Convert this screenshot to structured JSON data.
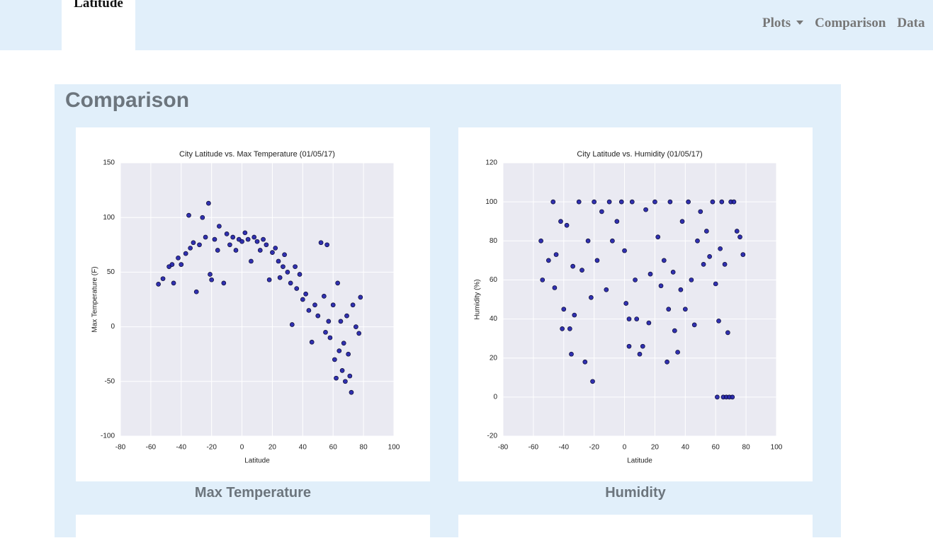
{
  "nav": {
    "brand": "Latitude",
    "items": [
      "Plots",
      "Comparison",
      "Data"
    ]
  },
  "heading": "Comparison",
  "captions": [
    "Max Temperature",
    "Humidity"
  ],
  "chart_data": [
    {
      "type": "scatter",
      "title": "City Latitude vs. Max Temperature (01/05/17)",
      "xlabel": "Latitude",
      "ylabel": "Max Temperature (F)",
      "xlim": [
        -80,
        100
      ],
      "xticks": [
        -80,
        -60,
        -40,
        -20,
        0,
        20,
        40,
        60,
        80,
        100
      ],
      "ylim": [
        -100,
        150
      ],
      "yticks": [
        -100,
        -50,
        0,
        50,
        100,
        150
      ],
      "grid": true,
      "color": "#1c1ca8",
      "x": [
        -55,
        -52,
        -48,
        -46,
        -45,
        -42,
        -40,
        -37,
        -35,
        -34,
        -32,
        -30,
        -28,
        -26,
        -24,
        -22,
        -21,
        -20,
        -18,
        -16,
        -15,
        -12,
        -10,
        -8,
        -6,
        -4,
        -2,
        0,
        2,
        4,
        6,
        8,
        10,
        12,
        14,
        16,
        18,
        20,
        22,
        24,
        25,
        27,
        28,
        30,
        32,
        33,
        35,
        36,
        38,
        40,
        42,
        44,
        46,
        48,
        50,
        52,
        54,
        55,
        56,
        57,
        58,
        60,
        61,
        62,
        63,
        64,
        65,
        66,
        67,
        68,
        69,
        70,
        71,
        72,
        73,
        75,
        77,
        78
      ],
      "values": [
        39,
        44,
        55,
        57,
        40,
        63,
        57,
        67,
        102,
        72,
        77,
        32,
        75,
        100,
        82,
        113,
        48,
        43,
        80,
        70,
        92,
        40,
        85,
        75,
        82,
        70,
        80,
        78,
        86,
        80,
        60,
        82,
        78,
        70,
        80,
        75,
        43,
        68,
        72,
        60,
        45,
        55,
        66,
        50,
        40,
        2,
        55,
        35,
        48,
        25,
        30,
        15,
        -14,
        20,
        10,
        77,
        28,
        -5,
        75,
        5,
        -10,
        20,
        -30,
        -47,
        40,
        -22,
        5,
        -40,
        -15,
        -50,
        10,
        -25,
        -45,
        -60,
        20,
        0,
        -6,
        27
      ]
    },
    {
      "type": "scatter",
      "title": "City Latitude vs. Humidity (01/05/17)",
      "xlabel": "Latitude",
      "ylabel": "Humidity (%)",
      "xlim": [
        -80,
        100
      ],
      "xticks": [
        -80,
        -60,
        -40,
        -20,
        0,
        20,
        40,
        60,
        80,
        100
      ],
      "ylim": [
        -20,
        120
      ],
      "yticks": [
        -20,
        0,
        20,
        40,
        60,
        80,
        100,
        120
      ],
      "grid": true,
      "color": "#1c1ca8",
      "x": [
        -55,
        -54,
        -50,
        -47,
        -46,
        -45,
        -42,
        -41,
        -40,
        -38,
        -36,
        -35,
        -34,
        -33,
        -30,
        -28,
        -26,
        -24,
        -22,
        -21,
        -20,
        -18,
        -15,
        -12,
        -10,
        -8,
        -5,
        -2,
        0,
        1,
        3,
        3,
        5,
        7,
        8,
        10,
        12,
        14,
        16,
        17,
        20,
        22,
        24,
        26,
        28,
        29,
        30,
        32,
        33,
        35,
        37,
        38,
        40,
        42,
        44,
        46,
        48,
        50,
        52,
        54,
        56,
        58,
        60,
        61,
        62,
        63,
        64,
        65,
        66,
        67,
        68,
        69,
        70,
        71,
        72,
        74,
        76,
        78
      ],
      "values": [
        80,
        60,
        70,
        100,
        56,
        73,
        90,
        35,
        45,
        88,
        35,
        22,
        67,
        42,
        100,
        65,
        18,
        80,
        51,
        8,
        100,
        70,
        95,
        55,
        100,
        80,
        90,
        100,
        75,
        48,
        26,
        40,
        100,
        60,
        40,
        22,
        26,
        96,
        38,
        63,
        100,
        82,
        57,
        70,
        18,
        45,
        100,
        64,
        34,
        23,
        55,
        90,
        45,
        100,
        60,
        37,
        80,
        95,
        68,
        85,
        72,
        100,
        58,
        0,
        39,
        76,
        100,
        0,
        68,
        0,
        33,
        0,
        100,
        0,
        100,
        85,
        82,
        73
      ]
    }
  ]
}
